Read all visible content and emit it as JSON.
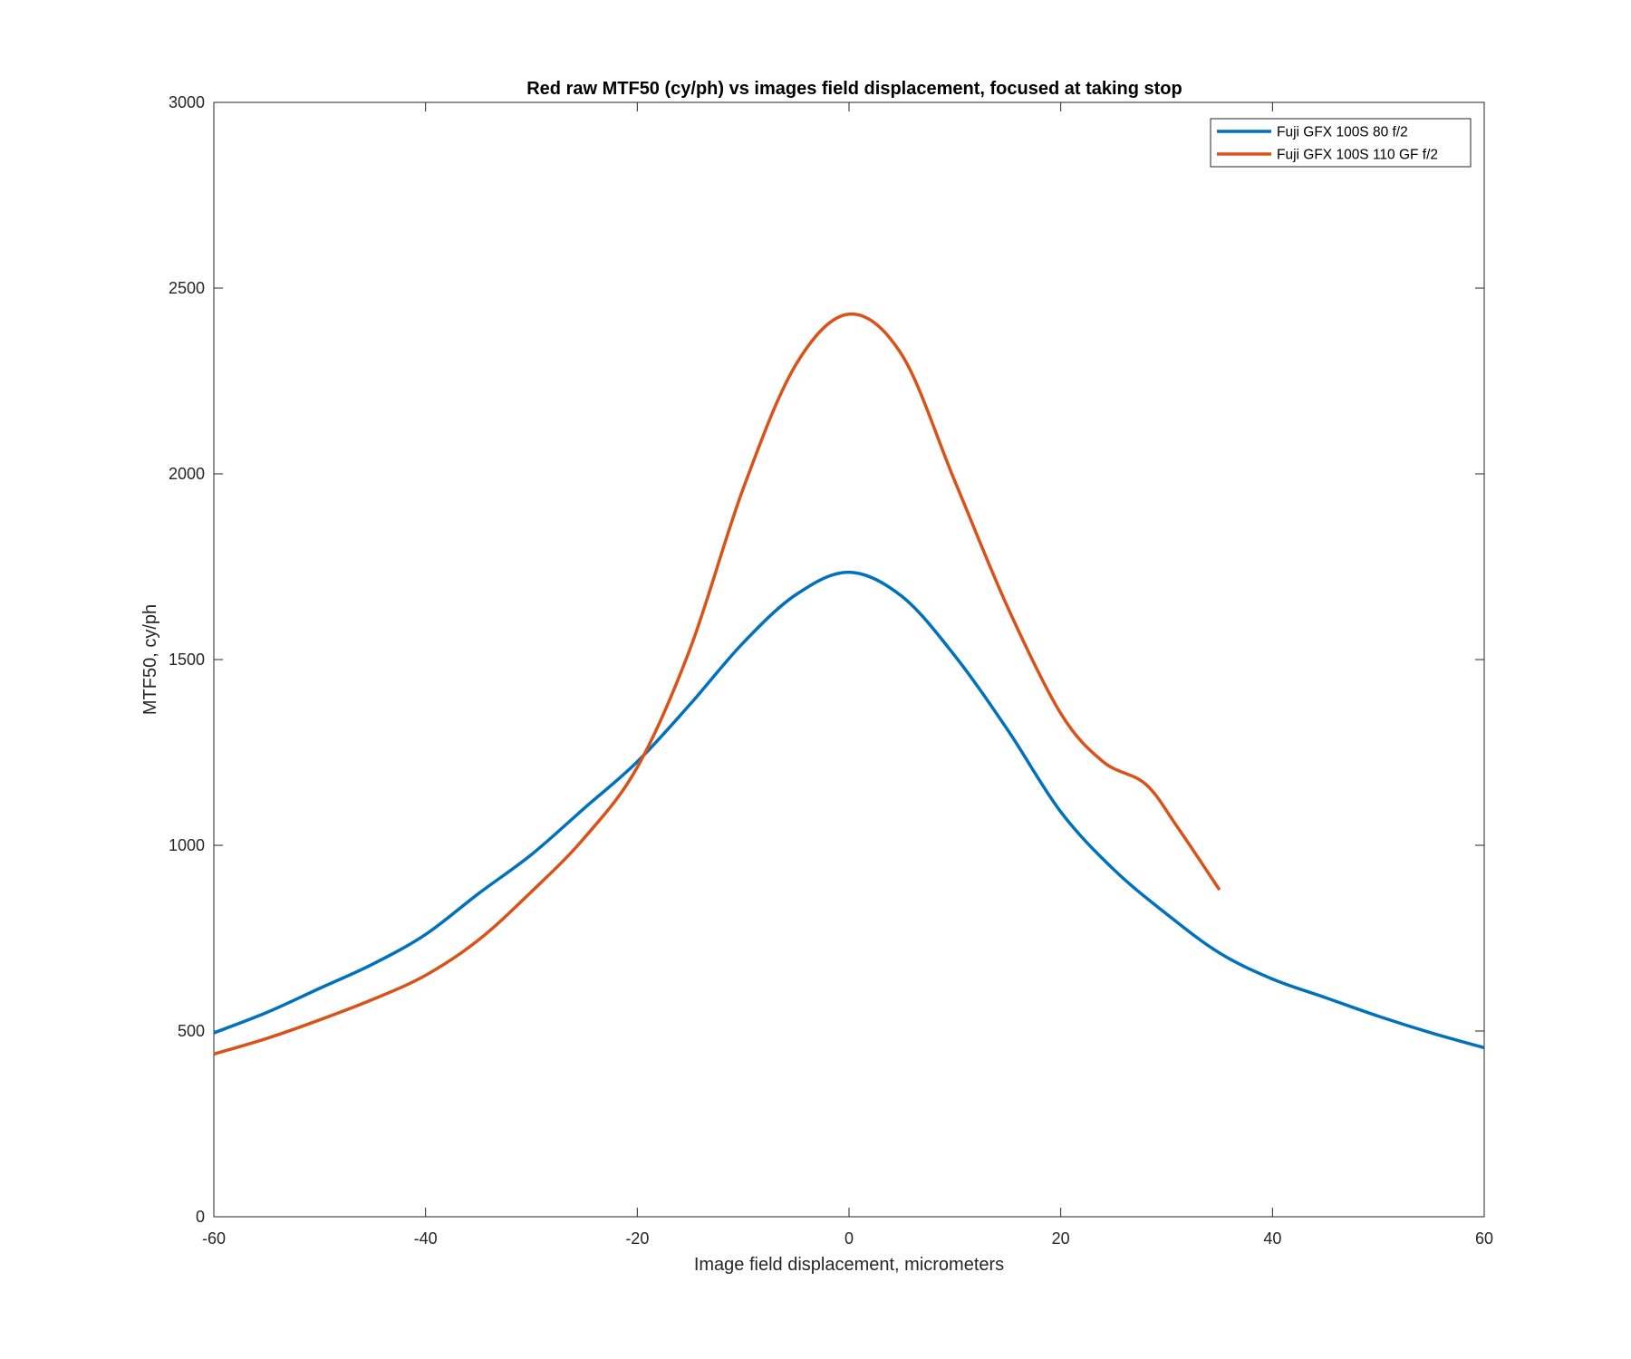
{
  "chart_data": {
    "type": "line",
    "title": "Red raw MTF50 (cy/ph) vs images field displacement, focused at taking stop",
    "xlabel": "Image field displacement, micrometers",
    "ylabel": "MTF50, cy/ph",
    "xlim": [
      -60,
      60
    ],
    "ylim": [
      0,
      3000
    ],
    "xticks": [
      -60,
      -40,
      -20,
      0,
      20,
      40,
      60
    ],
    "yticks": [
      0,
      500,
      1000,
      1500,
      2000,
      2500,
      3000
    ],
    "grid": false,
    "legend_position": "top-right",
    "series": [
      {
        "name": "Fuji GFX 100S 80 f/2",
        "color": "#0072BD",
        "x": [
          -60,
          -55,
          -50,
          -45,
          -40,
          -35,
          -30,
          -25,
          -20,
          -15,
          -10,
          -5,
          0,
          5,
          10,
          15,
          20,
          25,
          30,
          35,
          40,
          45,
          50,
          55,
          60
        ],
        "y": [
          495,
          550,
          615,
          680,
          760,
          870,
          975,
          1100,
          1225,
          1380,
          1545,
          1675,
          1735,
          1670,
          1510,
          1310,
          1090,
          935,
          815,
          710,
          640,
          590,
          540,
          495,
          455
        ]
      },
      {
        "name": "Fuji GFX 100S 110 GF f/2",
        "color": "#D95319",
        "x": [
          -60,
          -55,
          -50,
          -45,
          -40,
          -35,
          -30,
          -25,
          -20,
          -15,
          -10,
          -5,
          0,
          5,
          10,
          15,
          20,
          24,
          28,
          31,
          35
        ],
        "y": [
          438,
          480,
          530,
          585,
          650,
          745,
          875,
          1020,
          1210,
          1530,
          1960,
          2295,
          2430,
          2320,
          1980,
          1640,
          1355,
          1225,
          1165,
          1050,
          880
        ]
      }
    ]
  }
}
